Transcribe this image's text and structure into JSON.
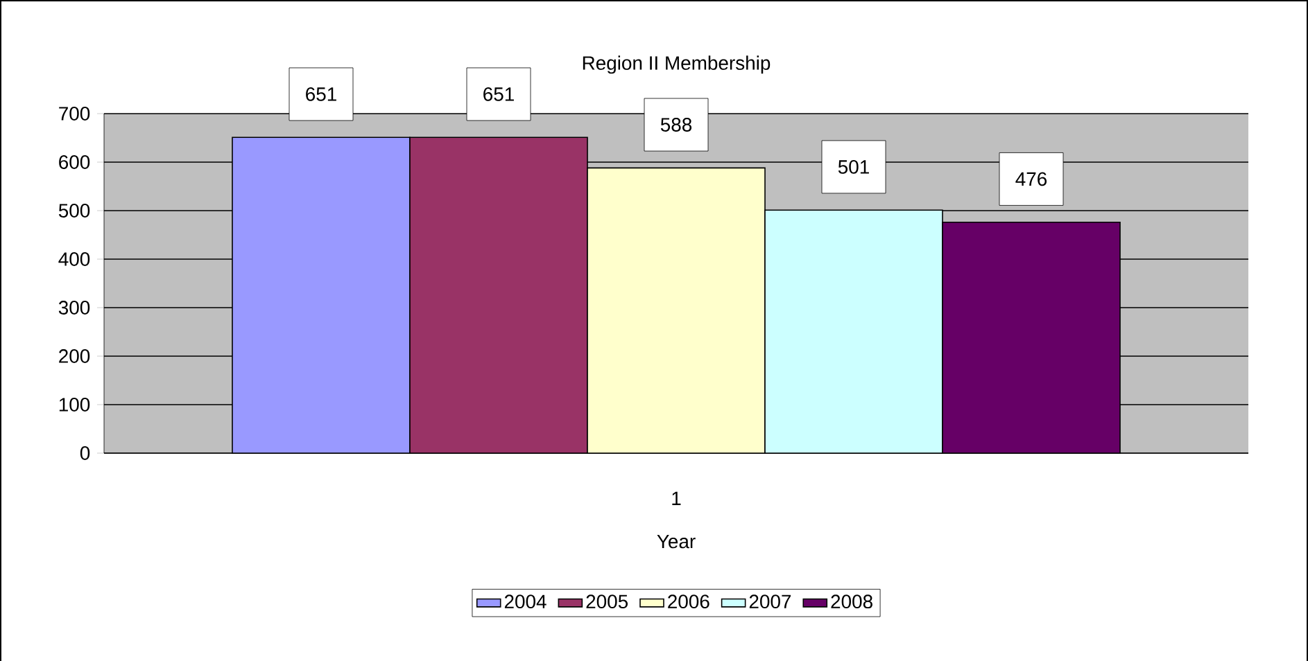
{
  "chart_data": {
    "type": "bar",
    "title": "Region II Membership",
    "xlabel": "Year",
    "categories": [
      "1"
    ],
    "series": [
      {
        "name": "2004",
        "color": "#9999ff",
        "values": [
          651
        ]
      },
      {
        "name": "2005",
        "color": "#993366",
        "values": [
          651
        ]
      },
      {
        "name": "2006",
        "color": "#ffffcc",
        "values": [
          588
        ]
      },
      {
        "name": "2007",
        "color": "#ccffff",
        "values": [
          501
        ]
      },
      {
        "name": "2008",
        "color": "#660066",
        "values": [
          476
        ]
      }
    ],
    "ylim": [
      0,
      700
    ],
    "yticks": [
      0,
      100,
      200,
      300,
      400,
      500,
      600,
      700
    ],
    "grid": "y",
    "legend": "bottom",
    "data_labels": true
  }
}
